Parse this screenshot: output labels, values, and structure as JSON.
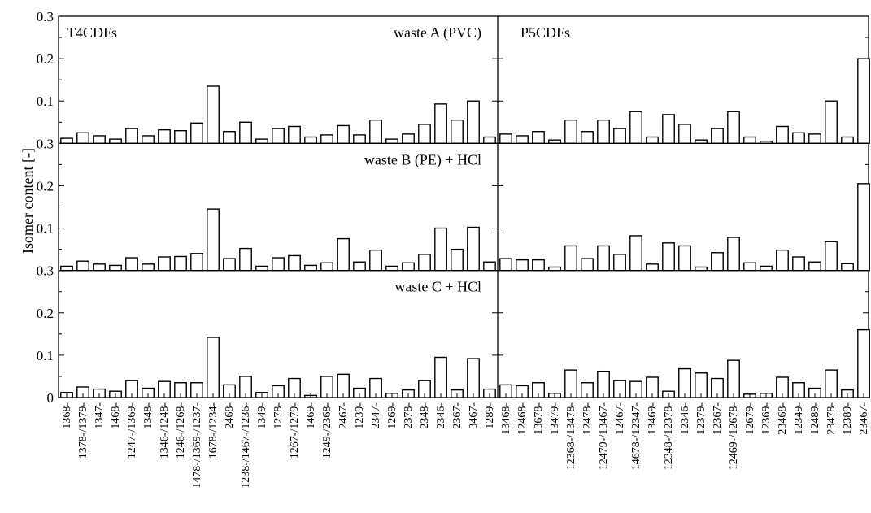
{
  "chart_data": {
    "type": "bar",
    "ylabel": "Isomer content [-]",
    "ylim": [
      0,
      0.3
    ],
    "y_ticks": [
      {
        "value": 0,
        "label": "0"
      },
      {
        "value": 0.1,
        "label": "0.1"
      },
      {
        "value": 0.2,
        "label": "0.2"
      },
      {
        "value": 0.3,
        "label": "0.3"
      }
    ],
    "groups": [
      {
        "name": "T4CDFs",
        "categories": [
          "1368-",
          "1378-/1379-",
          "1347-",
          "1468-",
          "1247-/1369-",
          "1348-",
          "1346-/1248-",
          "1246-/1268-",
          "1478-/1369-/1237-",
          "1678-/1234-",
          "2468-",
          "1238-/1467-/1236-",
          "1349-",
          "1278-",
          "1267-/1279-",
          "1469-",
          "1249-/2368-",
          "2467-",
          "1239-",
          "2347-",
          "1269-",
          "2378-",
          "2348-",
          "2346-",
          "2367-",
          "3467-",
          "1289-"
        ]
      },
      {
        "name": "P5CDFs",
        "categories": [
          "13468-",
          "12468-",
          "13678-",
          "13479-",
          "12368-/13478-",
          "12478-",
          "12479-/13467-",
          "12467-",
          "14678-/12347-",
          "13469-",
          "12348-/12378-",
          "12346-",
          "12379-",
          "12367-",
          "12469-/12678-",
          "12679-",
          "12369-",
          "23468-",
          "12349-",
          "12489-",
          "23478-",
          "12389-",
          "23467-"
        ]
      }
    ],
    "rows": [
      {
        "label": "waste A (PVC)",
        "series": [
          {
            "group": "T4CDFs",
            "values": [
              0.012,
              0.025,
              0.018,
              0.01,
              0.035,
              0.018,
              0.032,
              0.03,
              0.048,
              0.135,
              0.028,
              0.05,
              0.01,
              0.035,
              0.04,
              0.015,
              0.02,
              0.042,
              0.02,
              0.055,
              0.01,
              0.022,
              0.045,
              0.093,
              0.055,
              0.1,
              0.015
            ]
          },
          {
            "group": "P5CDFs",
            "values": [
              0.022,
              0.018,
              0.028,
              0.008,
              0.055,
              0.028,
              0.055,
              0.035,
              0.075,
              0.015,
              0.068,
              0.045,
              0.008,
              0.035,
              0.075,
              0.015,
              0.005,
              0.04,
              0.025,
              0.022,
              0.1,
              0.015,
              0.2
            ]
          }
        ]
      },
      {
        "label": "waste B (PE) + HCl",
        "series": [
          {
            "group": "T4CDFs",
            "values": [
              0.01,
              0.022,
              0.015,
              0.012,
              0.03,
              0.015,
              0.032,
              0.033,
              0.04,
              0.145,
              0.028,
              0.052,
              0.01,
              0.03,
              0.035,
              0.012,
              0.018,
              0.075,
              0.02,
              0.048,
              0.01,
              0.018,
              0.038,
              0.1,
              0.05,
              0.102,
              0.02
            ]
          },
          {
            "group": "P5CDFs",
            "values": [
              0.028,
              0.025,
              0.025,
              0.008,
              0.058,
              0.028,
              0.058,
              0.038,
              0.082,
              0.015,
              0.065,
              0.058,
              0.008,
              0.042,
              0.078,
              0.018,
              0.01,
              0.048,
              0.032,
              0.02,
              0.068,
              0.016,
              0.205
            ]
          }
        ]
      },
      {
        "label": "waste C +  HCl",
        "series": [
          {
            "group": "T4CDFs",
            "values": [
              0.012,
              0.025,
              0.02,
              0.015,
              0.04,
              0.022,
              0.038,
              0.035,
              0.035,
              0.142,
              0.03,
              0.05,
              0.012,
              0.028,
              0.045,
              0.005,
              0.05,
              0.055,
              0.022,
              0.045,
              0.01,
              0.018,
              0.04,
              0.095,
              0.018,
              0.092,
              0.02
            ]
          },
          {
            "group": "P5CDFs",
            "values": [
              0.03,
              0.028,
              0.035,
              0.01,
              0.065,
              0.035,
              0.062,
              0.04,
              0.038,
              0.048,
              0.015,
              0.068,
              0.058,
              0.045,
              0.088,
              0.008,
              0.01,
              0.048,
              0.035,
              0.022,
              0.065,
              0.018,
              0.16
            ]
          }
        ]
      }
    ]
  }
}
